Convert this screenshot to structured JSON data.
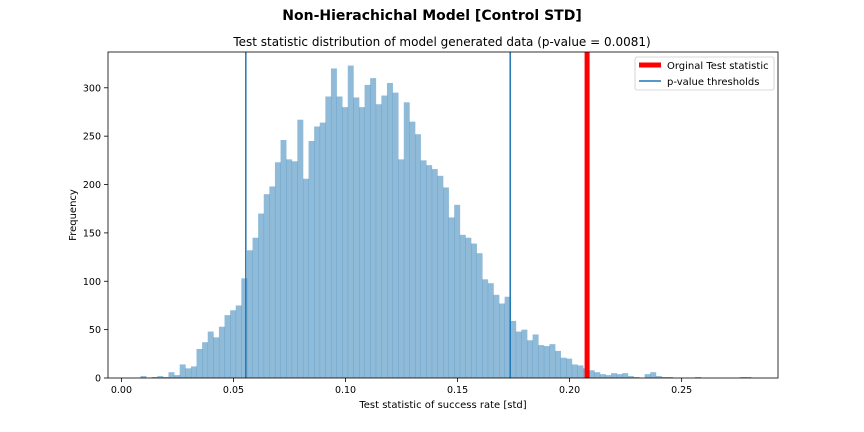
{
  "chart_data": {
    "type": "bar",
    "suptitle": "Non-Hierachichal Model [Control STD]",
    "title": "Test statistic distribution of model generated data (p-value = 0.0081)",
    "xlabel": "Test statistic of success rate [std]",
    "ylabel": "Frequency",
    "xlim": [
      -0.006,
      0.293
    ],
    "ylim": [
      0,
      337
    ],
    "xticks": [
      0.0,
      0.05,
      0.1,
      0.15,
      0.2,
      0.25
    ],
    "xtick_labels": [
      "0.00",
      "0.05",
      "0.10",
      "0.15",
      "0.20",
      "0.25"
    ],
    "yticks": [
      0,
      50,
      100,
      150,
      200,
      250,
      300
    ],
    "ytick_labels": [
      "0",
      "50",
      "100",
      "150",
      "200",
      "250",
      "300"
    ],
    "grid": false,
    "legend_position": "top-right",
    "histogram": {
      "name": "model generated data",
      "bin_start": 0.0085,
      "bin_width": 0.0025,
      "color": "#1f77b4",
      "alpha": 0.5,
      "counts": [
        2,
        0,
        1,
        2,
        1,
        6,
        3,
        14,
        10,
        12,
        30,
        37,
        48,
        42,
        53,
        65,
        70,
        75,
        103,
        132,
        145,
        170,
        190,
        198,
        223,
        246,
        226,
        224,
        267,
        206,
        245,
        260,
        264,
        291,
        320,
        291,
        280,
        323,
        290,
        280,
        303,
        310,
        283,
        292,
        305,
        295,
        226,
        285,
        265,
        252,
        225,
        220,
        216,
        209,
        197,
        166,
        179,
        148,
        145,
        139,
        129,
        102,
        98,
        86,
        77,
        84,
        59,
        48,
        50,
        39,
        45,
        34,
        33,
        35,
        28,
        21,
        20,
        14,
        13,
        10,
        8,
        6,
        4,
        3,
        5,
        4,
        5,
        2,
        1,
        0,
        4,
        6,
        2,
        1,
        1,
        0,
        0,
        0,
        0,
        1,
        0,
        0,
        0,
        0,
        0,
        0,
        0,
        1,
        1,
        0,
        0,
        0,
        0
      ]
    },
    "vlines": [
      {
        "name": "Orginal Test statistic",
        "x": 0.2078,
        "color": "#ff0000",
        "linewidth": "thick"
      },
      {
        "name": "p-value thresholds",
        "x": 0.0555,
        "color": "#1f77b4",
        "linewidth": "thin"
      },
      {
        "name": "p-value thresholds",
        "x": 0.1735,
        "color": "#1f77b4",
        "linewidth": "thin"
      }
    ],
    "legend": [
      {
        "label": "Orginal Test statistic",
        "color": "#ff0000",
        "style": "thick"
      },
      {
        "label": "p-value thresholds",
        "color": "#1f77b4",
        "style": "thin"
      }
    ]
  }
}
